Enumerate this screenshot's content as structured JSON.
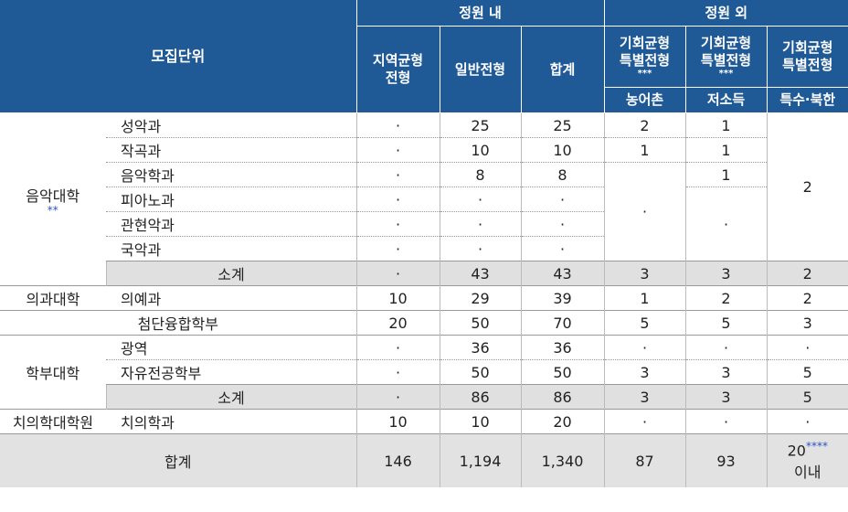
{
  "header": {
    "unit": "모집단위",
    "in_quota": "정원 내",
    "out_quota": "정원 외",
    "regional": "지역균형\n전형",
    "general": "일반전형",
    "sum": "합계",
    "opp1": "기회균형\n특별전형",
    "opp1_mark": "***",
    "opp2": "기회균형\n특별전형",
    "opp2_mark": "***",
    "opp3": "기회균형\n특별전형",
    "sub1": "농어촌",
    "sub2": "저소득",
    "sub3": "특수·북한"
  },
  "music": {
    "college": "음악대학",
    "mark": "**",
    "rows": [
      {
        "dept": "성악과",
        "regional": "·",
        "general": "25",
        "sum": "25",
        "rural": "2",
        "low": "1"
      },
      {
        "dept": "작곡과",
        "regional": "·",
        "general": "10",
        "sum": "10",
        "rural": "1",
        "low": "1"
      },
      {
        "dept": "음악학과",
        "regional": "·",
        "general": "8",
        "sum": "8",
        "low": "1"
      },
      {
        "dept": "피아노과",
        "regional": "·",
        "general": "·",
        "sum": "·"
      },
      {
        "dept": "관현악과",
        "regional": "·",
        "general": "·",
        "sum": "·"
      },
      {
        "dept": "국악과",
        "regional": "·",
        "general": "·",
        "sum": "·"
      }
    ],
    "rural_merged": "·",
    "low_merged": "·",
    "special_merged": "2",
    "subtotal": {
      "label": "소계",
      "regional": "·",
      "general": "43",
      "sum": "43",
      "rural": "3",
      "low": "3",
      "special": "2"
    }
  },
  "medicine": {
    "college": "의과대학",
    "dept": "의예과",
    "regional": "10",
    "general": "29",
    "sum": "39",
    "rural": "1",
    "low": "2",
    "special": "2"
  },
  "convergence": {
    "label": "첨단융합학부",
    "regional": "20",
    "general": "50",
    "sum": "70",
    "rural": "5",
    "low": "5",
    "special": "3"
  },
  "undergrad": {
    "college": "학부대학",
    "rows": [
      {
        "dept": "광역",
        "regional": "·",
        "general": "36",
        "sum": "36",
        "rural": "·",
        "low": "·",
        "special": "·"
      },
      {
        "dept": "자유전공학부",
        "regional": "·",
        "general": "50",
        "sum": "50",
        "rural": "3",
        "low": "3",
        "special": "5"
      }
    ],
    "subtotal": {
      "label": "소계",
      "regional": "·",
      "general": "86",
      "sum": "86",
      "rural": "3",
      "low": "3",
      "special": "5"
    }
  },
  "dental": {
    "college": "치의학대학원",
    "dept": "치의학과",
    "regional": "10",
    "general": "10",
    "sum": "20",
    "rural": "·",
    "low": "·",
    "special": "·"
  },
  "total": {
    "label": "합계",
    "regional": "146",
    "general": "1,194",
    "sum": "1,340",
    "rural": "87",
    "low": "93",
    "special": "20",
    "special_mark": "****",
    "special_suffix": "이내"
  },
  "colors": {
    "header": "#1f5a96",
    "subtotal_bg": "#e0e0e0",
    "mark": "#2f52c8"
  }
}
